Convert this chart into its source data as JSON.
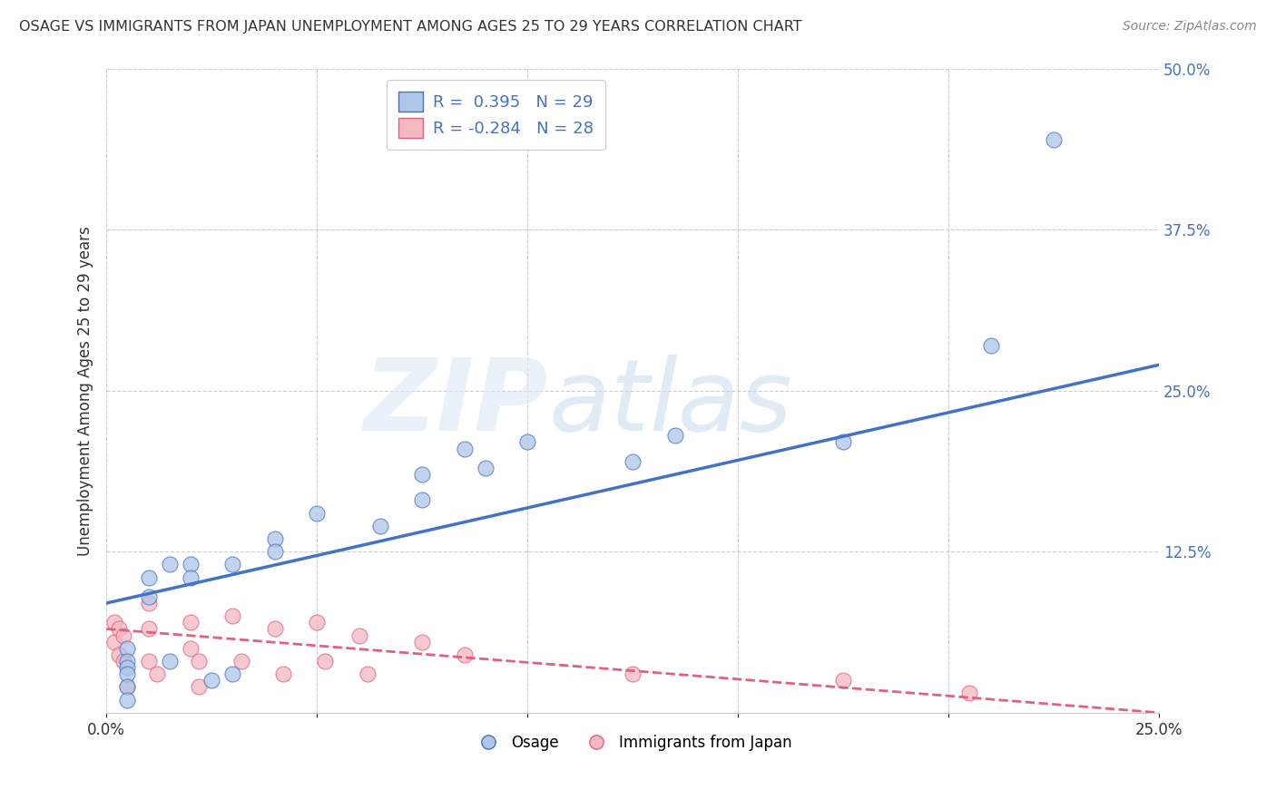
{
  "title": "OSAGE VS IMMIGRANTS FROM JAPAN UNEMPLOYMENT AMONG AGES 25 TO 29 YEARS CORRELATION CHART",
  "source": "Source: ZipAtlas.com",
  "ylabel": "Unemployment Among Ages 25 to 29 years",
  "xlim": [
    0.0,
    0.25
  ],
  "ylim": [
    0.0,
    0.5
  ],
  "xticks": [
    0.0,
    0.05,
    0.1,
    0.15,
    0.2,
    0.25
  ],
  "yticks": [
    0.0,
    0.125,
    0.25,
    0.375,
    0.5
  ],
  "osage_color": "#aec6e8",
  "japan_color": "#f4b8c1",
  "osage_line_color": "#4472c4",
  "japan_line_color": "#e06080",
  "grid_color": "#c8c8c8",
  "background_color": "#ffffff",
  "tick_color": "#4472c4",
  "osage_scatter_x": [
    0.005,
    0.005,
    0.005,
    0.005,
    0.005,
    0.005,
    0.01,
    0.01,
    0.015,
    0.015,
    0.02,
    0.02,
    0.025,
    0.03,
    0.03,
    0.04,
    0.04,
    0.05,
    0.065,
    0.075,
    0.075,
    0.085,
    0.09,
    0.1,
    0.125,
    0.135,
    0.175,
    0.21,
    0.225
  ],
  "osage_scatter_y": [
    0.05,
    0.04,
    0.035,
    0.03,
    0.02,
    0.01,
    0.105,
    0.09,
    0.115,
    0.04,
    0.115,
    0.105,
    0.025,
    0.115,
    0.03,
    0.135,
    0.125,
    0.155,
    0.145,
    0.185,
    0.165,
    0.205,
    0.19,
    0.21,
    0.195,
    0.215,
    0.21,
    0.285,
    0.445
  ],
  "japan_scatter_x": [
    0.002,
    0.002,
    0.003,
    0.003,
    0.004,
    0.004,
    0.005,
    0.01,
    0.01,
    0.01,
    0.012,
    0.02,
    0.02,
    0.022,
    0.022,
    0.03,
    0.032,
    0.04,
    0.042,
    0.05,
    0.052,
    0.06,
    0.062,
    0.075,
    0.085,
    0.125,
    0.175,
    0.205
  ],
  "japan_scatter_y": [
    0.07,
    0.055,
    0.065,
    0.045,
    0.06,
    0.04,
    0.02,
    0.085,
    0.065,
    0.04,
    0.03,
    0.07,
    0.05,
    0.04,
    0.02,
    0.075,
    0.04,
    0.065,
    0.03,
    0.07,
    0.04,
    0.06,
    0.03,
    0.055,
    0.045,
    0.03,
    0.025,
    0.015
  ],
  "osage_line_x": [
    0.0,
    0.25
  ],
  "osage_line_y": [
    0.085,
    0.27
  ],
  "japan_line_x": [
    0.0,
    0.25
  ],
  "japan_line_y": [
    0.065,
    0.0
  ],
  "legend_label_osage": "Osage",
  "legend_label_japan": "Immigrants from Japan"
}
